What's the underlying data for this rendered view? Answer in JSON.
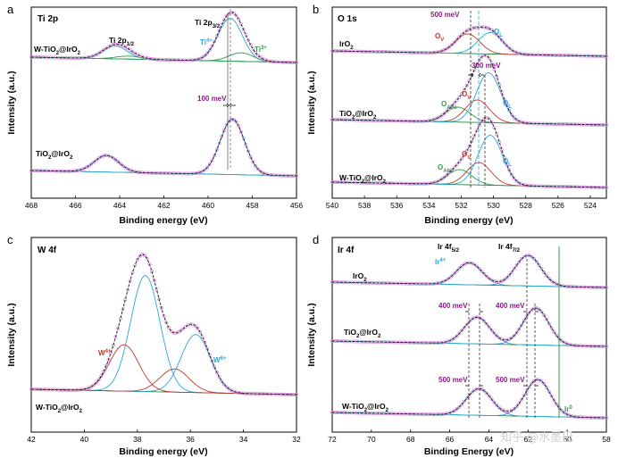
{
  "watermark": "知乎 @水墨巴",
  "colors": {
    "raw": "#d98ae0",
    "fit": "#222222",
    "baseline": "#1f8a3e",
    "ti4": "#2aa7d8",
    "ti3": "#2e9e4a",
    "ov": "#c0392b",
    "ol": "#2aa7d8",
    "oabs": "#2e9e4a",
    "w6": "#2aa7d8",
    "w4": "#c0392b",
    "ir4": "#2aa7d8",
    "irother": "#c0392b",
    "ir0": "#2e9e4a",
    "mev": "#8b1a8b"
  },
  "chart_data": [
    {
      "panel": "a",
      "type": "line",
      "title": "Ti 2p",
      "xlabel": "Binding energy (eV)",
      "ylabel": "Intensity (a.u.)",
      "xlim": [
        468,
        456
      ],
      "xticks": [
        "468",
        "466",
        "464",
        "462",
        "460",
        "458",
        "456"
      ],
      "samples": [
        "W-TiO2@IrO2",
        "TiO2@IrO2"
      ],
      "peak_labels": [
        "Ti 2p1/2",
        "Ti 2p3/2"
      ],
      "components": [
        "Ti4+",
        "Ti3+"
      ],
      "annotations": [
        "100 meV"
      ],
      "series": [
        {
          "name": "W-TiO2@IrO2",
          "peaks": [
            {
              "component": "Ti4+",
              "center": 459.0,
              "height": 1.0
            },
            {
              "component": "Ti4+",
              "center": 464.2,
              "height": 0.3
            },
            {
              "component": "Ti3+",
              "center": 458.5,
              "height": 0.2
            },
            {
              "component": "Ti3+",
              "center": 463.6,
              "height": 0.07
            }
          ]
        },
        {
          "name": "TiO2@IrO2",
          "peaks": [
            {
              "component": "Ti4+",
              "center": 458.9,
              "height": 1.0
            },
            {
              "component": "Ti4+",
              "center": 464.6,
              "height": 0.3
            }
          ]
        }
      ]
    },
    {
      "panel": "b",
      "type": "line",
      "title": "O 1s",
      "xlabel": "Binding energy (eV)",
      "ylabel": "Intensity (a.u.)",
      "xlim": [
        540,
        523
      ],
      "xticks": [
        "540",
        "538",
        "536",
        "534",
        "532",
        "530",
        "528",
        "526",
        "524"
      ],
      "samples": [
        "IrO2",
        "TiO2@IrO2",
        "W-TiO2@IrO2"
      ],
      "components": [
        "OV",
        "OL",
        "OAbs"
      ],
      "annotations": [
        "500 meV",
        "300 meV"
      ],
      "series": [
        {
          "name": "IrO2",
          "peaks": [
            {
              "component": "OV",
              "center": 531.6,
              "height": 0.55
            },
            {
              "component": "OL",
              "center": 530.2,
              "height": 0.6
            }
          ]
        },
        {
          "name": "TiO2@IrO2",
          "peaks": [
            {
              "component": "OAbs",
              "center": 532.2,
              "height": 0.3
            },
            {
              "component": "OV",
              "center": 531.0,
              "height": 0.45
            },
            {
              "component": "OL",
              "center": 530.3,
              "height": 1.0
            }
          ]
        },
        {
          "name": "W-TiO2@IrO2",
          "peaks": [
            {
              "component": "OAbs",
              "center": 532.1,
              "height": 0.3
            },
            {
              "component": "OV",
              "center": 530.9,
              "height": 0.45
            },
            {
              "component": "OL",
              "center": 530.2,
              "height": 1.0
            }
          ]
        }
      ]
    },
    {
      "panel": "c",
      "type": "line",
      "title": "W 4f",
      "xlabel": "Binding energy (eV)",
      "ylabel": "Intensity (a.u.)",
      "xlim": [
        42,
        32
      ],
      "xticks": [
        "42",
        "40",
        "38",
        "36",
        "34",
        "32"
      ],
      "samples": [
        "W-TiO2@IrO2"
      ],
      "components": [
        "W4+",
        "W6+"
      ],
      "series": [
        {
          "name": "W-TiO2@IrO2",
          "peaks": [
            {
              "component": "W6+",
              "center": 37.7,
              "height": 1.0
            },
            {
              "component": "W6+",
              "center": 35.8,
              "height": 0.5
            },
            {
              "component": "W4+",
              "center": 38.5,
              "height": 0.4
            },
            {
              "component": "W4+",
              "center": 36.6,
              "height": 0.2
            }
          ]
        }
      ]
    },
    {
      "panel": "d",
      "type": "line",
      "title": "Ir 4f",
      "xlabel": "Binding Energy (eV)",
      "ylabel": "Intensity (a.u.)",
      "xlim": [
        72,
        58
      ],
      "xticks": [
        "72",
        "70",
        "68",
        "66",
        "64",
        "62",
        "60",
        "58"
      ],
      "samples": [
        "IrO2",
        "TiO2@IrO2",
        "W-TiO2@IrO2"
      ],
      "peak_labels": [
        "Ir 4f5/2",
        "Ir 4f7/2"
      ],
      "components": [
        "Ir4+",
        "Ir0"
      ],
      "annotations": [
        "400 meV",
        "400 meV",
        "500 meV",
        "500 meV"
      ],
      "series": [
        {
          "name": "IrO2",
          "peaks": [
            {
              "component": "Ir4+",
              "center": 65.0,
              "height": 0.65
            },
            {
              "component": "Ir4+",
              "center": 62.0,
              "height": 0.9
            }
          ]
        },
        {
          "name": "TiO2@IrO2",
          "peaks": [
            {
              "component": "Ir4+",
              "center": 64.6,
              "height": 0.65
            },
            {
              "component": "Ir4+",
              "center": 61.6,
              "height": 0.9
            }
          ]
        },
        {
          "name": "W-TiO2@IrO2",
          "peaks": [
            {
              "component": "Ir4+",
              "center": 64.5,
              "height": 0.65
            },
            {
              "component": "Ir4+",
              "center": 61.5,
              "height": 0.9
            }
          ]
        }
      ]
    }
  ],
  "text": {
    "a": {
      "letter": "a",
      "title": "Ti 2p",
      "s1": "W-TiO",
      "s1b": "2",
      "s1c": "@IrO",
      "s1d": "2",
      "s2": "TiO",
      "s2b": "2",
      "s2c": "@IrO",
      "s2d": "2",
      "p12": "Ti 2p",
      "p12s": "1/2",
      "p32": "Ti 2p",
      "p32s": "3/2",
      "ti4": "Ti",
      "ti4s": "4+",
      "ti3": "Ti",
      "ti3s": "3+",
      "mev": "100 meV"
    },
    "b": {
      "letter": "b",
      "title": "O 1s",
      "s1": "IrO",
      "s1b": "2",
      "s2": "TiO",
      "s2b": "2",
      "s2c": "@IrO",
      "s2d": "2",
      "s3": "W-TiO",
      "s3b": "2",
      "s3c": "@IrO",
      "s3d": "2",
      "mev1": "500 meV",
      "mev2": "300 meV",
      "ov": "O",
      "ovs": "V",
      "ol": "O",
      "ols": "L",
      "oabs": "O",
      "oabss": "Abs"
    },
    "c": {
      "letter": "c",
      "title": "W 4f",
      "s1": "W-TiO",
      "s1b": "2",
      "s1c": "@IrO",
      "s1d": "2",
      "w4": "W",
      "w4s": "4+",
      "w6": "W",
      "w6s": "6+"
    },
    "d": {
      "letter": "d",
      "title": "Ir 4f",
      "s1": "IrO",
      "s1b": "2",
      "s2": "TiO",
      "s2b": "2",
      "s2c": "@IrO",
      "s2d": "2",
      "s3": "W-TiO",
      "s3b": "2",
      "s3c": "@IrO",
      "s3d": "2",
      "p52": "Ir 4f",
      "p52s": "5/2",
      "p72": "Ir 4f",
      "p72s": "7/2",
      "ir4": "Ir",
      "ir4s": "4+",
      "ir0": "Ir",
      "ir0s": "0",
      "mev1": "400 meV",
      "mev2": "400 meV",
      "mev3": "500 meV",
      "mev4": "500 meV"
    }
  }
}
